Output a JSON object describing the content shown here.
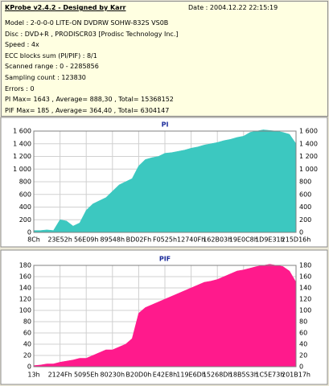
{
  "header": {
    "title": "KProbe v2.4.2 - Designed by Karr",
    "date": "Date : 2004.12.22 22:15:19"
  },
  "info": [
    "Model : 2-0-0-0 LITE-ON DVDRW SOHW-832S  VS0B",
    "Disc : DVD+R , PRODISCR03 [Prodisc Technology Inc.]",
    "Speed : 4x",
    "ECC blocks sum (PI/PIF) : 8/1",
    "Scanned range : 0 - 2285856",
    "Sampling count : 123830",
    "Errors : 0",
    "PI Max= 1643 , Average= 888,30 , Total= 15368152",
    "PIF Max= 185 , Average= 364,40 , Total= 6304147"
  ],
  "chart_data": [
    {
      "type": "area",
      "title": "PI",
      "color": "#3cc8c0",
      "grid": true,
      "categories": [
        "8Ch",
        null,
        null,
        null,
        "23E52h",
        null,
        null,
        null,
        "56E09h",
        null,
        null,
        null,
        "89548h",
        null,
        null,
        null,
        "BD02Fh",
        null,
        null,
        null,
        "F0525h",
        null,
        null,
        null,
        "12740Fh",
        null,
        null,
        null,
        "162B03h",
        null,
        null,
        null,
        "19E0C8h",
        null,
        null,
        null,
        "1D9E31h",
        null,
        null,
        null,
        "215D16h"
      ],
      "values": [
        30,
        30,
        40,
        30,
        200,
        180,
        100,
        150,
        350,
        450,
        500,
        550,
        650,
        750,
        800,
        850,
        1050,
        1150,
        1180,
        1200,
        1250,
        1260,
        1280,
        1300,
        1330,
        1350,
        1380,
        1400,
        1420,
        1450,
        1470,
        1500,
        1520,
        1580,
        1600,
        1620,
        1610,
        1600,
        1580,
        1550,
        1400
      ],
      "ylim": [
        0,
        1600
      ],
      "yticks": [
        0,
        200,
        400,
        600,
        {
          "value": 800,
          "label": "800"
        },
        {
          "value": 1000,
          "label": "1 000"
        },
        {
          "value": 1200,
          "label": "1 200"
        },
        {
          "value": 1400,
          "label": "1 400"
        },
        {
          "value": 1600,
          "label": "1 600"
        }
      ]
    },
    {
      "type": "area",
      "title": "PIF",
      "color": "#ff1a8c",
      "grid": true,
      "categories": [
        "13h",
        null,
        null,
        null,
        "2124Fh",
        null,
        null,
        null,
        "5095Eh",
        null,
        null,
        null,
        "80230h",
        null,
        null,
        null,
        "B20D0h",
        null,
        null,
        null,
        "E42E8h",
        null,
        null,
        null,
        "119E6Dh",
        null,
        null,
        null,
        "15268Dh",
        null,
        null,
        null,
        "18B5S3h",
        null,
        null,
        null,
        "1C5E73h",
        null,
        null,
        null,
        "201B17h"
      ],
      "values": [
        2,
        3,
        5,
        5,
        8,
        10,
        12,
        15,
        15,
        20,
        25,
        30,
        30,
        35,
        40,
        50,
        95,
        105,
        110,
        115,
        120,
        125,
        130,
        135,
        140,
        145,
        150,
        152,
        155,
        160,
        165,
        170,
        172,
        175,
        178,
        180,
        182,
        180,
        178,
        170,
        150
      ],
      "ylim": [
        0,
        180
      ],
      "yticks": [
        0,
        20,
        40,
        60,
        80,
        100,
        120,
        140,
        160,
        180
      ]
    }
  ]
}
